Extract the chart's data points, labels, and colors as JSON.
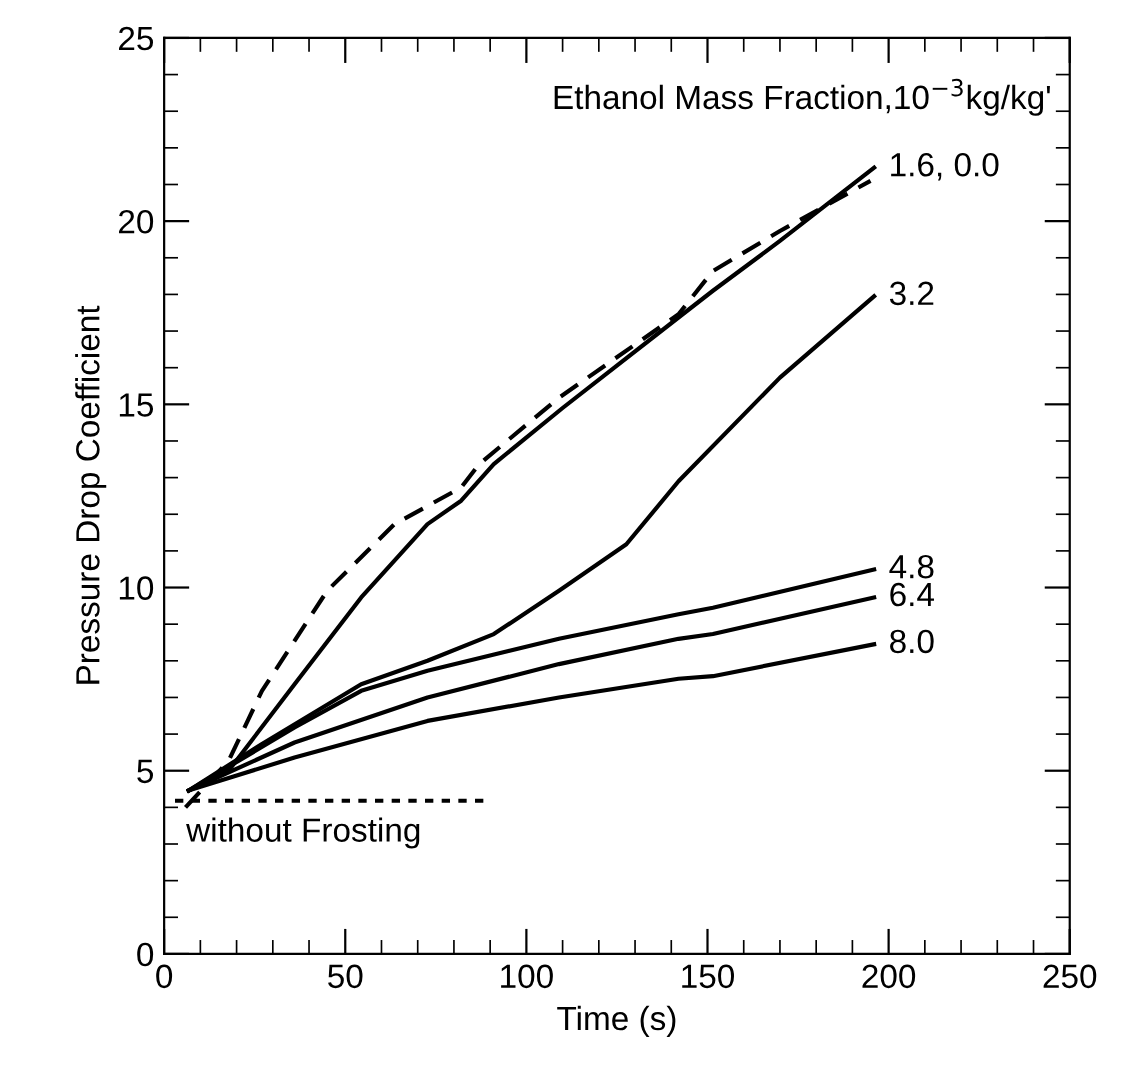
{
  "chart_data": {
    "type": "line",
    "xlabel": "Time (s)",
    "ylabel": "Pressure Drop Coefficient",
    "legend_title": "Ethanol Mass Fraction,10$^{−3}$kg/kg'",
    "annotations": [
      {
        "text": "without Frosting",
        "x": 3,
        "y": 4.18
      }
    ],
    "xlim": [
      0,
      250
    ],
    "xticks": [
      0,
      50,
      100,
      150,
      200,
      250
    ],
    "ylim": [
      0,
      25
    ],
    "yticks": [
      0,
      5,
      10,
      15,
      20,
      25
    ],
    "grid": false,
    "legend": "right",
    "series": [
      {
        "name": "1.6, 0.0",
        "color": "#000000",
        "line_style": "solid",
        "x": [
          6.8,
          17.8,
          36,
          54.4,
          72.7,
          82,
          91,
          110,
          142,
          151.5,
          170,
          196
        ],
        "values": [
          4.46,
          5.0,
          7.36,
          9.73,
          11.73,
          12.37,
          13.37,
          14.9,
          17.37,
          18.1,
          19.46,
          21.46
        ]
      },
      {
        "color": "#000000",
        "line_style": "dashed",
        "x": [
          5.9,
          17.8,
          27,
          45,
          63.6,
          82,
          87,
          109,
          142,
          151.5,
          170,
          195
        ],
        "values": [
          4.0,
          5.27,
          7.18,
          9.91,
          11.73,
          12.73,
          13.37,
          15.18,
          17.46,
          18.64,
          19.73,
          21.1
        ]
      },
      {
        "name": "3.2",
        "color": "#000000",
        "line_style": "solid",
        "x": [
          6.8,
          27,
          54.4,
          72.7,
          91,
          109,
          127.6,
          142,
          170,
          196
        ],
        "values": [
          4.46,
          5.73,
          7.36,
          8.0,
          8.73,
          9.91,
          11.18,
          12.9,
          15.73,
          17.95
        ]
      },
      {
        "name": "4.8",
        "color": "#000000",
        "line_style": "solid",
        "x": [
          6.8,
          36,
          54.4,
          72.7,
          109,
          142,
          151.5,
          196
        ],
        "values": [
          4.46,
          6.18,
          7.18,
          7.73,
          8.6,
          9.27,
          9.45,
          10.49
        ]
      },
      {
        "name": "6.4",
        "color": "#000000",
        "line_style": "solid",
        "x": [
          6.8,
          36,
          72.7,
          109,
          142,
          151.5,
          196
        ],
        "values": [
          4.46,
          5.77,
          7.0,
          7.91,
          8.6,
          8.73,
          9.73
        ]
      },
      {
        "name": "8.0",
        "color": "#000000",
        "line_style": "solid",
        "x": [
          6.8,
          36,
          72.7,
          109,
          142,
          151.5,
          196
        ],
        "values": [
          4.46,
          5.36,
          6.36,
          7.0,
          7.51,
          7.58,
          8.45
        ]
      },
      {
        "color": "#000000",
        "line_style": "dotted",
        "x": [
          3,
          89
        ],
        "values": [
          4.18,
          4.18
        ]
      }
    ]
  }
}
